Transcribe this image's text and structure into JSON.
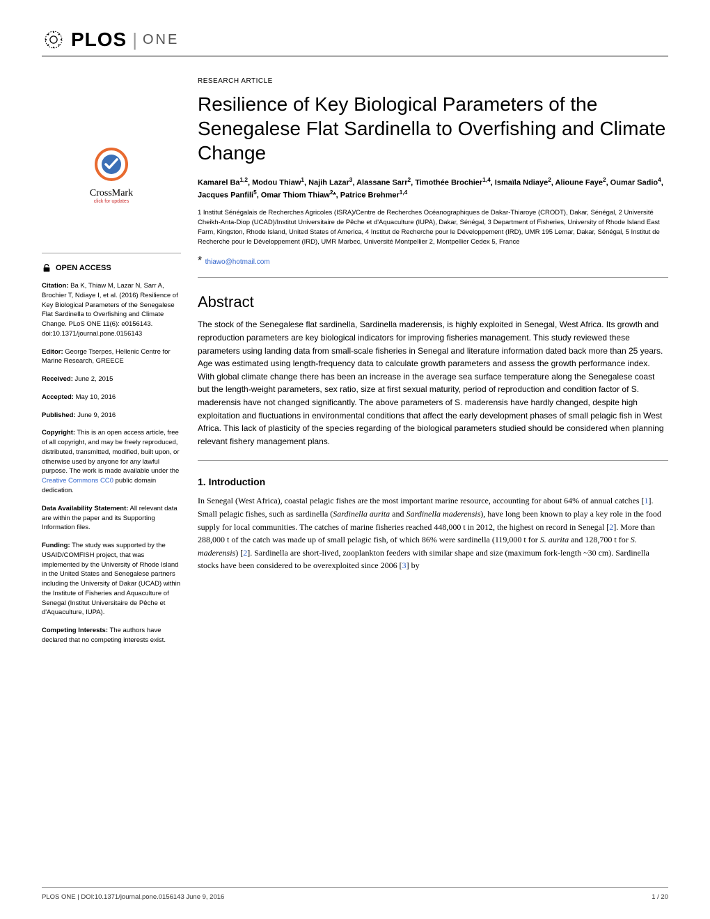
{
  "logo": {
    "plos": "PLOS",
    "one": "ONE"
  },
  "article_type": "RESEARCH ARTICLE",
  "title": "Resilience of Key Biological Parameters of the Senegalese Flat Sardinella to Overfishing and Climate Change",
  "authors_html": "Kamarel Ba<sup>1,2</sup>, Modou Thiaw<sup>1</sup>, Najih Lazar<sup>3</sup>, Alassane Sarr<sup>2</sup>, Timothée Brochier<sup>1,4</sup>, Ismaïla Ndiaye<sup>2</sup>, Alioune Faye<sup>2</sup>, Oumar Sadio<sup>4</sup>, Jacques Panfili<sup>5</sup>, Omar Thiom Thiaw<sup>2</sup>*, Patrice Brehmer<sup>1,4</sup>",
  "affiliations": "1 Institut Sénégalais de Recherches Agricoles (ISRA)/Centre de Recherches Océanographiques de Dakar-Thiaroye (CRODT), Dakar, Sénégal, 2 Université Cheikh-Anta-Diop (UCAD)/Institut Universitaire de Pêche et d'Aquaculture (IUPA), Dakar, Sénégal, 3 Department of Fisheries, University of Rhode Island East Farm, Kingston, Rhode Island, United States of America, 4 Institut de Recherche pour le Développement (IRD), UMR 195 Lemar, Dakar, Sénégal, 5 Institut de Recherche pour le Développement (IRD), UMR Marbec, Université Montpellier 2, Montpellier Cedex 5, France",
  "corr_email": "thiawo@hotmail.com",
  "abstract_heading": "Abstract",
  "abstract": "The stock of the Senegalese flat sardinella, Sardinella maderensis, is highly exploited in Senegal, West Africa. Its growth and reproduction parameters are key biological indicators for improving fisheries management. This study reviewed these parameters using landing data from small-scale fisheries in Senegal and literature information dated back more than 25 years. Age was estimated using length-frequency data to calculate growth parameters and assess the growth performance index. With global climate change there has been an increase in the average sea surface temperature along the Senegalese coast but the length-weight parameters, sex ratio, size at first sexual maturity, period of reproduction and condition factor of S. maderensis have not changed significantly. The above parameters of S. maderensis have hardly changed, despite high exploitation and fluctuations in environmental conditions that affect the early development phases of small pelagic fish in West Africa. This lack of plasticity of the species regarding of the biological parameters studied should be considered when planning relevant fishery management plans.",
  "intro_heading": "1. Introduction",
  "intro_html": "In Senegal (West Africa), coastal pelagic fishes are the most important marine resource, accounting for about 64% of annual catches [<span class='ref'>1</span>]. Small pelagic fishes, such as sardinella (<i>Sardinella aurita</i> and <i>Sardinella maderensis</i>), have long been known to play a key role in the food supply for local communities. The catches of marine fisheries reached 448,000 t in 2012, the highest on record in Senegal [<span class='ref'>2</span>]. More than 288,000 t of the catch was made up of small pelagic fish, of which 86% were sardinella (119,000 t for <i>S. aurita</i> and 128,700 t for <i>S. maderensis</i>) [<span class='ref'>2</span>]. Sardinella are short-lived, zooplankton feeders with similar shape and size (maximum fork-length ~30 cm). Sardinella stocks have been considered to be overexploited since 2006 [<span class='ref'>3</span>] by",
  "crossmark": {
    "label": "CrossMark",
    "sub": "click for updates"
  },
  "open_access": "OPEN ACCESS",
  "sidebar": {
    "citation_label": "Citation:",
    "citation": " Ba K, Thiaw M, Lazar N, Sarr A, Brochier T, Ndiaye I, et al. (2016) Resilience of Key Biological Parameters of the Senegalese Flat Sardinella to Overfishing and Climate Change. PLoS ONE 11(6): e0156143. doi:10.1371/journal.pone.0156143",
    "editor_label": "Editor:",
    "editor": " George Tserpes, Hellenic Centre for Marine Research, GREECE",
    "received_label": "Received:",
    "received": " June 2, 2015",
    "accepted_label": "Accepted:",
    "accepted": " May 10, 2016",
    "published_label": "Published:",
    "published": " June 9, 2016",
    "copyright_label": "Copyright:",
    "copyright_pre": " This is an open access article, free of all copyright, and may be freely reproduced, distributed, transmitted, modified, built upon, or otherwise used by anyone for any lawful purpose. The work is made available under the ",
    "copyright_link": "Creative Commons CC0",
    "copyright_post": " public domain dedication.",
    "data_label": "Data Availability Statement:",
    "data": " All relevant data are within the paper and its Supporting Information files.",
    "funding_label": "Funding:",
    "funding": " The study was supported by the USAID/COMFISH project, that was implemented by the University of Rhode Island in the United States and Senegalese partners including the University of Dakar (UCAD) within the Institute of Fisheries and Aquaculture of Senegal (Institut Universitaire de Pêche et d'Aquaculture, IUPA).",
    "competing_label": "Competing Interests:",
    "competing": " The authors have declared that no competing interests exist."
  },
  "footer": {
    "left": "PLOS ONE | DOI:10.1371/journal.pone.0156143    June 9, 2016",
    "right": "1 / 20"
  },
  "colors": {
    "link": "#3366cc",
    "crossmark_ring": "#e86a2f",
    "crossmark_inner": "#3b6fb6"
  }
}
